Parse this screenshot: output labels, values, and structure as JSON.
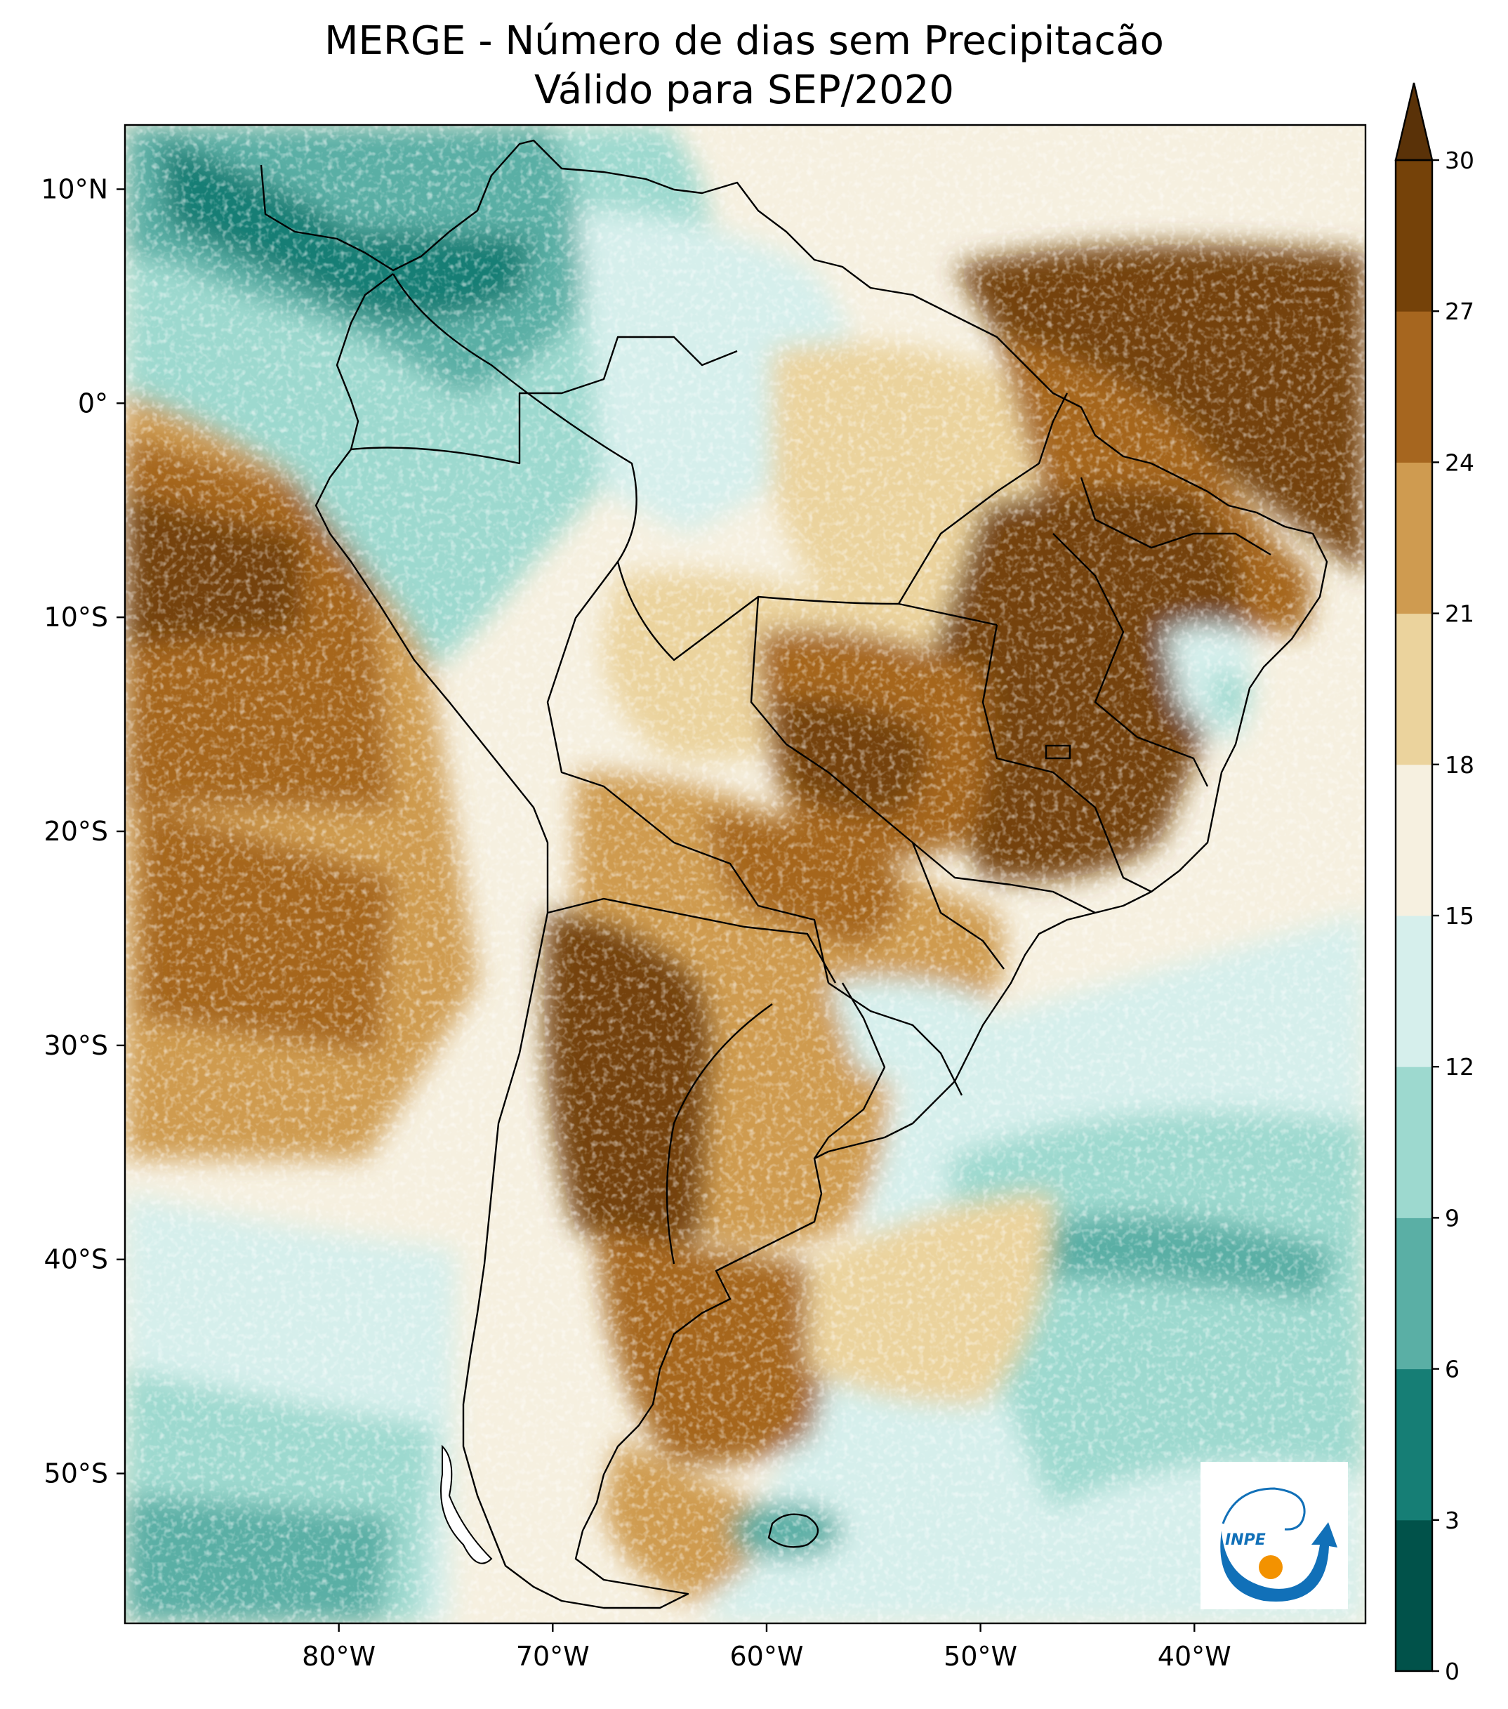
{
  "title": {
    "line1": "MERGE - Número de dias sem Precipitacão",
    "line2": "Válido para SEP/2020"
  },
  "map": {
    "type": "filled-contour map",
    "lat_ticks": [
      {
        "value": 10,
        "label": "10°N"
      },
      {
        "value": 0,
        "label": "0°"
      },
      {
        "value": -10,
        "label": "10°S"
      },
      {
        "value": -20,
        "label": "20°S"
      },
      {
        "value": -30,
        "label": "30°S"
      },
      {
        "value": -40,
        "label": "40°S"
      },
      {
        "value": -50,
        "label": "50°S"
      }
    ],
    "lon_ticks": [
      {
        "value": -80,
        "label": "80°W"
      },
      {
        "value": -70,
        "label": "70°W"
      },
      {
        "value": -60,
        "label": "60°W"
      },
      {
        "value": -50,
        "label": "50°W"
      },
      {
        "value": -40,
        "label": "40°W"
      }
    ],
    "lon_range": [
      -90,
      -32
    ],
    "lat_range": [
      -57,
      13
    ]
  },
  "colorbar": {
    "levels": [
      0,
      3,
      6,
      9,
      12,
      15,
      18,
      21,
      24,
      27,
      30
    ],
    "labels": [
      "0",
      "3",
      "6",
      "9",
      "12",
      "15",
      "18",
      "21",
      "24",
      "27",
      "30"
    ],
    "colors": [
      "#01524a",
      "#167e75",
      "#5aafa5",
      "#9dd9cf",
      "#d6efec",
      "#f6f0e0",
      "#ebd39d",
      "#cf9b50",
      "#a6661f",
      "#754209"
    ],
    "extend_color": "#5a3208"
  },
  "logo": {
    "text": "INPE",
    "arrow_color": "#1170b8",
    "dot_color": "#f39200"
  }
}
